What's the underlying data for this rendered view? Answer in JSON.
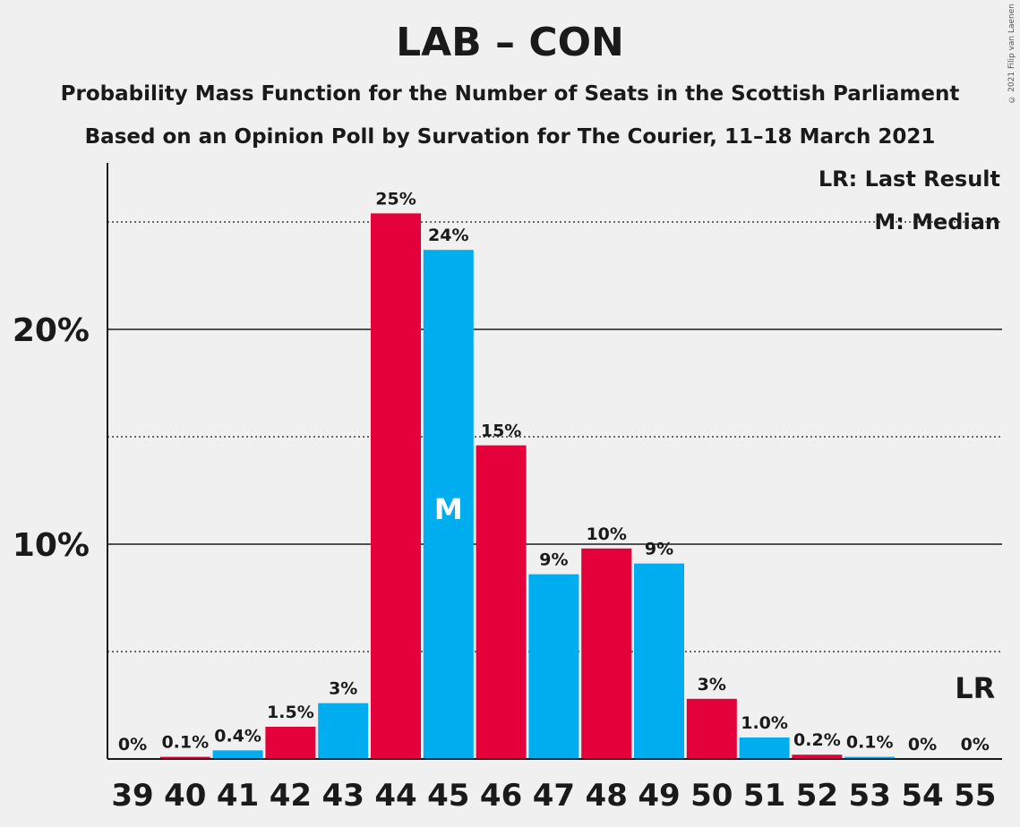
{
  "title": "LAB – CON",
  "subtitle": "Probability Mass Function for the Number of Seats in the Scottish Parliament",
  "subtitle2": "Based on an Opinion Poll by Survation for The Courier, 11–18 March 2021",
  "copyright": "© 2021 Filip van Laenen",
  "legend": {
    "last_result": "LR: Last Result",
    "median": "M: Median"
  },
  "colors": {
    "red": "#e4003b",
    "blue": "#00aeef",
    "text": "#1a1a1a",
    "background": "#f0f0f0"
  },
  "chart_data": {
    "type": "bar",
    "categories": [
      "39",
      "40",
      "41",
      "42",
      "43",
      "44",
      "45",
      "46",
      "47",
      "48",
      "49",
      "50",
      "51",
      "52",
      "53",
      "54",
      "55"
    ],
    "values": [
      0,
      0.1,
      0.4,
      1.5,
      2.6,
      25.4,
      23.7,
      14.6,
      8.6,
      9.8,
      9.1,
      2.8,
      1.0,
      0.2,
      0.1,
      0,
      0
    ],
    "labels": [
      "0%",
      "0.1%",
      "0.4%",
      "1.5%",
      "3%",
      "25%",
      "24%",
      "15%",
      "9%",
      "10%",
      "9%",
      "3%",
      "1.0%",
      "0.2%",
      "0.1%",
      "0%",
      "0%"
    ],
    "bar_colors": [
      "red",
      "red",
      "blue",
      "red",
      "blue",
      "red",
      "blue",
      "red",
      "blue",
      "red",
      "blue",
      "red",
      "blue",
      "red",
      "blue",
      "red",
      "blue"
    ],
    "ylim": [
      0,
      27.6
    ],
    "yticks": [
      {
        "value": 10,
        "label": "10%"
      },
      {
        "value": 20,
        "label": "20%"
      }
    ],
    "minor_gridlines": [
      5,
      15,
      25
    ],
    "median": {
      "category": "45",
      "label": "M"
    },
    "last_result": {
      "category": "55",
      "label": "LR"
    }
  }
}
